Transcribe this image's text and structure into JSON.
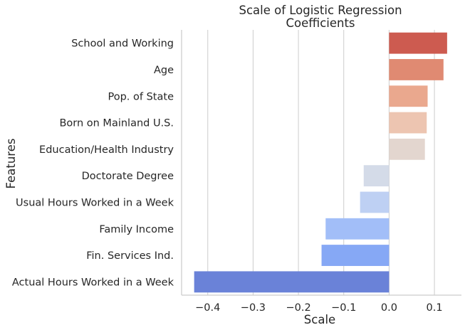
{
  "chart_data": {
    "type": "bar",
    "orientation": "horizontal",
    "title_lines": [
      "Scale of Logistic Regression",
      "Coefficients"
    ],
    "xlabel": "Scale",
    "ylabel": "Features",
    "xlim": [
      -0.45,
      0.155
    ],
    "xticks": [
      -0.4,
      -0.3,
      -0.2,
      -0.1,
      0.0,
      0.1
    ],
    "xtick_labels": [
      "−0.4",
      "−0.3",
      "−0.2",
      "−0.1",
      "0.0",
      "0.1"
    ],
    "grid": "vertical",
    "categories": [
      "School and Working",
      "Age",
      "Pop. of State",
      "Born on Mainland U.S.",
      "Education/Health Industry",
      "Doctorate Degree",
      "Usual Hours Worked in a Week",
      "Family Income",
      "Fin. Services Ind.",
      "Actual Hours Worked in a Week"
    ],
    "values": [
      0.128,
      0.12,
      0.085,
      0.083,
      0.079,
      -0.056,
      -0.064,
      -0.14,
      -0.149,
      -0.43
    ],
    "colors": [
      "#cd5b50",
      "#e08a72",
      "#eaa88e",
      "#edc5b1",
      "#e3d6cf",
      "#d4dbe8",
      "#bed0f3",
      "#a2bef8",
      "#86a8f5",
      "#6a82d8"
    ]
  }
}
